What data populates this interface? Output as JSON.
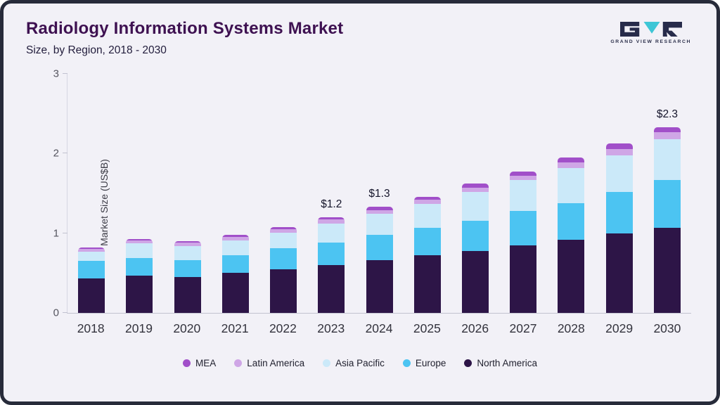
{
  "header": {
    "title": "Radiology Information Systems Market",
    "subtitle": "Size, by Region, 2018 - 2030",
    "logo_text": "GRAND VIEW RESEARCH"
  },
  "chart_data": {
    "type": "bar",
    "stacked": true,
    "title": "Radiology Information Systems Market Size, by Region, 2018 - 2030",
    "xlabel": "",
    "ylabel": "Market Size (US$B)",
    "ylim": [
      0,
      3
    ],
    "yticks": [
      0,
      1,
      2,
      3
    ],
    "grid": false,
    "legend_position": "bottom",
    "categories": [
      2018,
      2019,
      2020,
      2021,
      2022,
      2023,
      2024,
      2025,
      2026,
      2027,
      2028,
      2029,
      2030
    ],
    "series": [
      {
        "name": "North America",
        "color": "#2d1547",
        "values": [
          0.43,
          0.47,
          0.45,
          0.5,
          0.55,
          0.6,
          0.66,
          0.72,
          0.78,
          0.85,
          0.92,
          1.0,
          1.07
        ]
      },
      {
        "name": "Europe",
        "color": "#4cc4f2",
        "values": [
          0.22,
          0.22,
          0.21,
          0.22,
          0.26,
          0.28,
          0.32,
          0.35,
          0.38,
          0.43,
          0.46,
          0.52,
          0.6
        ]
      },
      {
        "name": "Asia Pacific",
        "color": "#cbe9f9",
        "values": [
          0.12,
          0.18,
          0.18,
          0.19,
          0.2,
          0.24,
          0.26,
          0.3,
          0.36,
          0.39,
          0.44,
          0.46,
          0.51
        ]
      },
      {
        "name": "Latin America",
        "color": "#cfa6e6",
        "values": [
          0.03,
          0.04,
          0.04,
          0.04,
          0.04,
          0.05,
          0.05,
          0.05,
          0.05,
          0.05,
          0.07,
          0.08,
          0.09
        ]
      },
      {
        "name": "MEA",
        "color": "#a14fc9",
        "values": [
          0.02,
          0.02,
          0.02,
          0.03,
          0.03,
          0.03,
          0.04,
          0.04,
          0.05,
          0.05,
          0.06,
          0.07,
          0.06
        ]
      }
    ],
    "annotations": {
      "2023": "$1.2",
      "2024": "$1.3",
      "2030": "$2.3"
    }
  }
}
